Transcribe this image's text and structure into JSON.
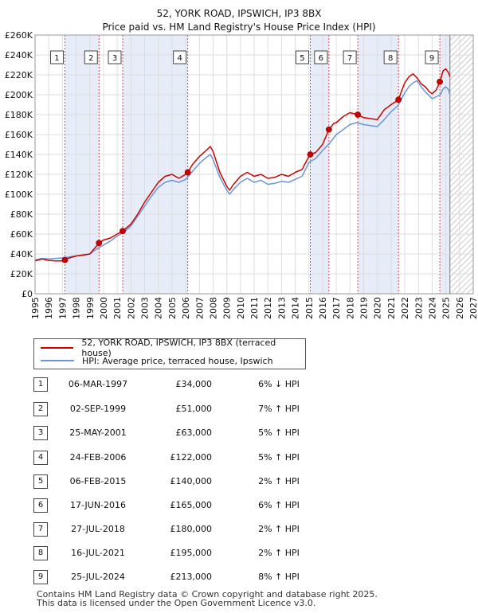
{
  "title_line1": "52, YORK ROAD, IPSWICH, IP3 8BX",
  "title_line2": "Price paid vs. HM Land Registry's House Price Index (HPI)",
  "colors": {
    "price_line": "#cc0000",
    "hpi_line": "#6a96d2",
    "shade": "#dde6f5",
    "marker_line": "#dd4444",
    "grid": "#dddddd"
  },
  "legend": {
    "price_label": "52, YORK ROAD, IPSWICH, IP3 8BX (terraced house)",
    "hpi_label": "HPI: Average price, terraced house, Ipswich"
  },
  "sales": [
    {
      "num": "1",
      "date": "06-MAR-1997",
      "price": "£34,000",
      "hpi": "6% ↓ HPI"
    },
    {
      "num": "2",
      "date": "02-SEP-1999",
      "price": "£51,000",
      "hpi": "7% ↑ HPI"
    },
    {
      "num": "3",
      "date": "25-MAY-2001",
      "price": "£63,000",
      "hpi": "5% ↑ HPI"
    },
    {
      "num": "4",
      "date": "24-FEB-2006",
      "price": "£122,000",
      "hpi": "5% ↑ HPI"
    },
    {
      "num": "5",
      "date": "06-FEB-2015",
      "price": "£140,000",
      "hpi": "2% ↑ HPI"
    },
    {
      "num": "6",
      "date": "17-JUN-2016",
      "price": "£165,000",
      "hpi": "6% ↑ HPI"
    },
    {
      "num": "7",
      "date": "27-JUL-2018",
      "price": "£180,000",
      "hpi": "2% ↑ HPI"
    },
    {
      "num": "8",
      "date": "16-JUL-2021",
      "price": "£195,000",
      "hpi": "2% ↑ HPI"
    },
    {
      "num": "9",
      "date": "25-JUL-2024",
      "price": "£213,000",
      "hpi": "8% ↑ HPI"
    }
  ],
  "footer_line1": "Contains HM Land Registry data © Crown copyright and database right 2025.",
  "footer_line2": "This data is licensed under the Open Government Licence v3.0.",
  "chart_data": {
    "type": "line",
    "title": "52, YORK ROAD, IPSWICH, IP3 8BX — Price paid vs. HM Land Registry's House Price Index (HPI)",
    "xlabel": "",
    "ylabel": "",
    "xlim": [
      1995,
      2027
    ],
    "ylim": [
      0,
      260000
    ],
    "x_ticks": [
      1995,
      1996,
      1997,
      1998,
      1999,
      2000,
      2001,
      2002,
      2003,
      2004,
      2005,
      2006,
      2007,
      2008,
      2009,
      2010,
      2011,
      2012,
      2013,
      2014,
      2015,
      2016,
      2017,
      2018,
      2019,
      2020,
      2021,
      2022,
      2023,
      2024,
      2025,
      2026,
      2027
    ],
    "y_ticks": [
      0,
      20000,
      40000,
      60000,
      80000,
      100000,
      120000,
      140000,
      160000,
      180000,
      200000,
      220000,
      240000,
      260000
    ],
    "y_tick_labels": [
      "£0",
      "£20K",
      "£40K",
      "£60K",
      "£80K",
      "£100K",
      "£120K",
      "£140K",
      "£160K",
      "£180K",
      "£200K",
      "£220K",
      "£240K",
      "£260K"
    ],
    "grid": true,
    "legend_position": "below",
    "future_hatch_from": 2025.3,
    "sale_points": [
      {
        "label": "1",
        "x": 1997.18,
        "y": 34000
      },
      {
        "label": "2",
        "x": 1999.67,
        "y": 51000
      },
      {
        "label": "3",
        "x": 2001.4,
        "y": 63000
      },
      {
        "label": "4",
        "x": 2006.15,
        "y": 122000
      },
      {
        "label": "5",
        "x": 2015.1,
        "y": 140000
      },
      {
        "label": "6",
        "x": 2016.46,
        "y": 165000
      },
      {
        "label": "7",
        "x": 2018.57,
        "y": 180000
      },
      {
        "label": "8",
        "x": 2021.54,
        "y": 195000
      },
      {
        "label": "9",
        "x": 2024.56,
        "y": 213000
      }
    ],
    "series": [
      {
        "name": "52, YORK ROAD, IPSWICH, IP3 8BX (terraced house)",
        "x": [
          1995,
          1995.5,
          1996,
          1996.5,
          1997,
          1997.18,
          1997.5,
          1998,
          1998.5,
          1999,
          1999.67,
          2000,
          2000.5,
          2001,
          2001.4,
          2002,
          2002.5,
          2003,
          2003.5,
          2004,
          2004.5,
          2005,
          2005.5,
          2006,
          2006.15,
          2006.5,
          2007,
          2007.5,
          2007.8,
          2008,
          2008.5,
          2009,
          2009.2,
          2009.5,
          2010,
          2010.5,
          2011,
          2011.5,
          2012,
          2012.5,
          2013,
          2013.5,
          2014,
          2014.5,
          2015,
          2015.1,
          2015.5,
          2016,
          2016.46,
          2016.8,
          2017,
          2017.5,
          2018,
          2018.57,
          2019,
          2019.5,
          2020,
          2020.5,
          2021,
          2021.54,
          2021.8,
          2022,
          2022.3,
          2022.6,
          2022.9,
          2023.2,
          2023.5,
          2023.8,
          2024,
          2024.3,
          2024.56,
          2024.8,
          2025,
          2025.2,
          2025.3
        ],
        "values": [
          33000,
          35000,
          33500,
          33000,
          33000,
          34000,
          36000,
          38000,
          39000,
          40000,
          51000,
          54000,
          56000,
          60000,
          63000,
          70000,
          80000,
          92000,
          102000,
          112000,
          118000,
          120000,
          116000,
          120000,
          122000,
          130000,
          138000,
          144000,
          148000,
          143000,
          122000,
          108000,
          104000,
          110000,
          118000,
          122000,
          118000,
          120000,
          116000,
          117000,
          120000,
          118000,
          122000,
          125000,
          138000,
          140000,
          142000,
          150000,
          165000,
          171000,
          172000,
          178000,
          182000,
          180000,
          177000,
          176000,
          175000,
          185000,
          190000,
          195000,
          205000,
          212000,
          218000,
          221000,
          217000,
          211000,
          208000,
          203000,
          201000,
          205000,
          213000,
          224000,
          226000,
          222000,
          218000
        ]
      },
      {
        "name": "HPI: Average price, terraced house, Ipswich",
        "x": [
          1995,
          1995.5,
          1996,
          1996.5,
          1997,
          1997.5,
          1998,
          1998.5,
          1999,
          1999.5,
          2000,
          2000.5,
          2001,
          2001.5,
          2002,
          2002.5,
          2003,
          2003.5,
          2004,
          2004.5,
          2005,
          2005.5,
          2006,
          2006.5,
          2007,
          2007.5,
          2007.8,
          2008,
          2008.5,
          2009,
          2009.2,
          2009.5,
          2010,
          2010.5,
          2011,
          2011.5,
          2012,
          2012.5,
          2013,
          2013.5,
          2014,
          2014.5,
          2015,
          2015.5,
          2016,
          2016.5,
          2017,
          2017.5,
          2018,
          2018.5,
          2019,
          2019.5,
          2020,
          2020.5,
          2021,
          2021.5,
          2022,
          2022.3,
          2022.6,
          2022.9,
          2023.2,
          2023.5,
          2023.8,
          2024,
          2024.3,
          2024.6,
          2024.8,
          2025,
          2025.2,
          2025.3
        ],
        "values": [
          34000,
          35500,
          35000,
          35500,
          36000,
          37000,
          38000,
          38500,
          40000,
          45000,
          49000,
          53000,
          58000,
          62000,
          68000,
          78000,
          88000,
          98000,
          107000,
          112000,
          114000,
          112000,
          115000,
          123000,
          131000,
          137000,
          140000,
          135000,
          117000,
          104000,
          100000,
          105000,
          112000,
          116000,
          112000,
          114000,
          110000,
          111000,
          113000,
          112000,
          115000,
          118000,
          132000,
          136000,
          144000,
          151000,
          160000,
          165000,
          170000,
          172000,
          170000,
          169000,
          168000,
          175000,
          183000,
          189000,
          202000,
          208000,
          212000,
          214000,
          208000,
          203000,
          199000,
          196000,
          198000,
          200000,
          206000,
          208000,
          205000,
          200000
        ]
      }
    ]
  }
}
